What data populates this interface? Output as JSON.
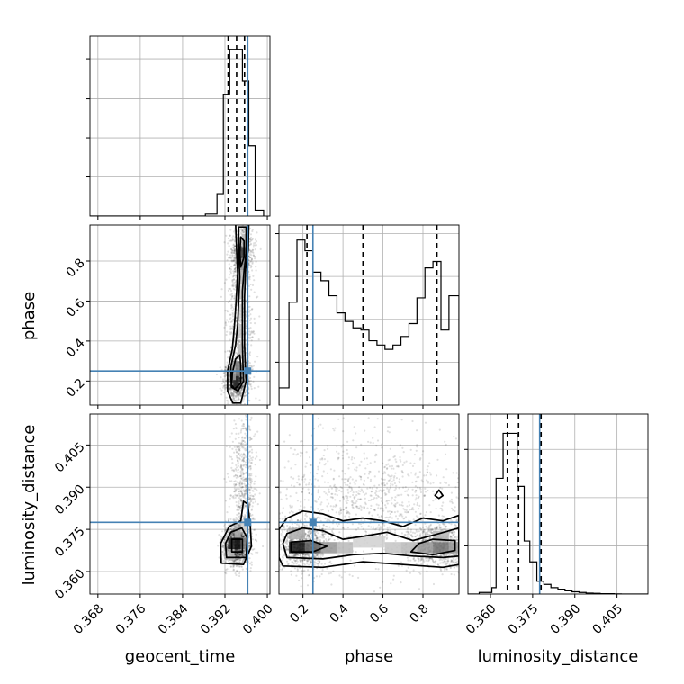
{
  "colors": {
    "truth": "#4682b4",
    "line": "#000000",
    "grid": "#b0b0b0",
    "scatter": "#000000"
  },
  "chart_data": {
    "type": "corner",
    "grid": true,
    "parameters": [
      "geocent_time",
      "phase",
      "luminosity_distance"
    ],
    "ranges": {
      "geocent_time": [
        0.3665,
        0.4005
      ],
      "phase": [
        0.08,
        0.98
      ],
      "luminosity_distance": [
        0.352,
        0.416
      ]
    },
    "truths": {
      "geocent_time": 0.3963,
      "phase": 0.25,
      "luminosity_distance": 0.3775
    },
    "quantiles": {
      "geocent_time": [
        0.3926,
        0.3942,
        0.3957
      ],
      "phase": [
        0.22,
        0.5,
        0.87
      ],
      "luminosity_distance": [
        0.366,
        0.37,
        0.378
      ]
    },
    "ticks": {
      "geocent_time": {
        "values": [
          0.368,
          0.376,
          0.384,
          0.392,
          0.4
        ],
        "labels": [
          "0.368",
          "0.376",
          "0.384",
          "0.392",
          "0.400"
        ]
      },
      "phase_y": {
        "values": [
          0.2,
          0.4,
          0.6,
          0.8
        ],
        "labels": [
          "0.2",
          "0.4",
          "0.6",
          "0.8"
        ]
      },
      "phase_x": {
        "values": [
          0.2,
          0.4,
          0.6,
          0.8
        ],
        "labels": [
          "0.2",
          "0.4",
          "0.6",
          "0.8"
        ]
      },
      "luminosity_distance_y": {
        "values": [
          0.36,
          0.375,
          0.39,
          0.405
        ],
        "labels": [
          "0.360",
          "0.375",
          "0.390",
          "0.405"
        ]
      },
      "luminosity_distance_x": {
        "values": [
          0.36,
          0.375,
          0.39,
          0.405
        ],
        "labels": [
          "0.360",
          "0.375",
          "0.390",
          "0.405"
        ]
      }
    },
    "hist_geocent_time": {
      "edges": [
        0.3665,
        0.3883,
        0.3905,
        0.3917,
        0.3929,
        0.3941,
        0.3953,
        0.3965,
        0.3977,
        0.3993
      ],
      "values": [
        0,
        0.5,
        5.5,
        31,
        42.5,
        42.5,
        34.5,
        18,
        1.5
      ]
    },
    "hist_phase": {
      "edges": [
        0.08,
        0.13,
        0.17,
        0.21,
        0.25,
        0.29,
        0.33,
        0.37,
        0.41,
        0.45,
        0.49,
        0.53,
        0.57,
        0.61,
        0.65,
        0.69,
        0.73,
        0.77,
        0.81,
        0.85,
        0.89,
        0.93,
        0.98
      ],
      "values": [
        4,
        24,
        38.5,
        36,
        31,
        29,
        25.5,
        21.5,
        19.5,
        18,
        17.5,
        15,
        14,
        13,
        14,
        16,
        19,
        25,
        32,
        33.5,
        17.5,
        25.5
      ]
    },
    "hist_luminosity_distance": {
      "edges": [
        0.352,
        0.356,
        0.3605,
        0.362,
        0.3645,
        0.367,
        0.3695,
        0.372,
        0.374,
        0.3765,
        0.379,
        0.3815,
        0.384,
        0.3865,
        0.389,
        0.3915,
        0.394,
        0.3965,
        0.399,
        0.4015,
        0.404,
        0.4065,
        0.409,
        0.416
      ],
      "values": [
        0,
        0.5,
        2,
        36,
        50,
        50,
        33.5,
        16.5,
        10,
        4,
        3,
        2,
        1.5,
        1,
        0.7,
        0.5,
        0.3,
        0.2,
        0.1,
        0.1,
        0.05,
        0,
        0
      ]
    },
    "samples_geocent_time_phase": {
      "n": 2200,
      "modes": [
        {
          "weight": 0.42,
          "x_mean": 0.3943,
          "x_sd": 0.0012,
          "y_mean": 0.21,
          "y_sd": 0.055
        },
        {
          "weight": 0.3,
          "x_mean": 0.3952,
          "x_sd": 0.0011,
          "y_mean": 0.83,
          "y_sd": 0.07
        },
        {
          "weight": 0.28,
          "x_mean": 0.3948,
          "x_sd": 0.0012,
          "y_mean": 0.5,
          "y_sd": 0.18
        }
      ]
    },
    "samples_geocent_time_luminosity_distance": {
      "n": 2000,
      "modes": [
        {
          "weight": 0.72,
          "x_mean": 0.3942,
          "x_sd": 0.0012,
          "y_mean": 0.3695,
          "y_sd": 0.0035
        },
        {
          "weight": 0.28,
          "x_mean": 0.3955,
          "x_sd": 0.0012,
          "y_mean": 0.392,
          "y_sd": 0.012
        }
      ]
    },
    "samples_phase_luminosity_distance": {
      "n": 2800,
      "modes": [
        {
          "weight": 0.32,
          "x_mean": 0.2,
          "x_sd": 0.06,
          "y_mean": 0.369,
          "y_sd": 0.004
        },
        {
          "weight": 0.3,
          "x_mean": 0.88,
          "x_sd": 0.08,
          "y_mean": 0.369,
          "y_sd": 0.004
        },
        {
          "weight": 0.38,
          "x_mean": 0.53,
          "x_sd": 0.25,
          "y_mean": 0.384,
          "y_sd": 0.012
        }
      ]
    },
    "density_geocent_time_phase": [
      {
        "x": 0.3941,
        "y": 0.2,
        "level": 0.95
      },
      {
        "x": 0.3945,
        "y": 0.26,
        "level": 0.55
      },
      {
        "x": 0.3953,
        "y": 0.84,
        "level": 0.85
      },
      {
        "x": 0.3953,
        "y": 0.78,
        "level": 0.45
      },
      {
        "x": 0.3949,
        "y": 0.35,
        "level": 0.3
      },
      {
        "x": 0.3949,
        "y": 0.45,
        "level": 0.22
      },
      {
        "x": 0.3949,
        "y": 0.55,
        "level": 0.18
      },
      {
        "x": 0.3951,
        "y": 0.65,
        "level": 0.2
      },
      {
        "x": 0.3951,
        "y": 0.72,
        "level": 0.3
      },
      {
        "x": 0.3957,
        "y": 0.9,
        "level": 0.3
      },
      {
        "x": 0.3935,
        "y": 0.24,
        "level": 0.4
      }
    ],
    "density_geocent_time_luminosity_distance": [
      {
        "x": 0.3932,
        "y": 0.37,
        "level": 0.9
      },
      {
        "x": 0.3944,
        "y": 0.37,
        "level": 1.0
      },
      {
        "x": 0.3956,
        "y": 0.37,
        "level": 0.55
      },
      {
        "x": 0.3944,
        "y": 0.374,
        "level": 0.35
      },
      {
        "x": 0.3932,
        "y": 0.366,
        "level": 0.3
      },
      {
        "x": 0.3956,
        "y": 0.376,
        "level": 0.2
      }
    ],
    "density_phase_luminosity_distance": [
      {
        "x": 0.17,
        "y": 0.3685,
        "level": 1.0
      },
      {
        "x": 0.25,
        "y": 0.3685,
        "level": 0.7
      },
      {
        "x": 0.33,
        "y": 0.3685,
        "level": 0.45
      },
      {
        "x": 0.41,
        "y": 0.3685,
        "level": 0.3
      },
      {
        "x": 0.49,
        "y": 0.3705,
        "level": 0.2
      },
      {
        "x": 0.57,
        "y": 0.3705,
        "level": 0.2
      },
      {
        "x": 0.65,
        "y": 0.3685,
        "level": 0.25
      },
      {
        "x": 0.73,
        "y": 0.3685,
        "level": 0.3
      },
      {
        "x": 0.81,
        "y": 0.3685,
        "level": 0.45
      },
      {
        "x": 0.89,
        "y": 0.3685,
        "level": 0.6
      },
      {
        "x": 0.97,
        "y": 0.3685,
        "level": 0.45
      },
      {
        "x": 0.17,
        "y": 0.3735,
        "level": 0.35
      },
      {
        "x": 0.89,
        "y": 0.3725,
        "level": 0.3
      }
    ],
    "contours_geocent_time_phase": [
      [
        [
          0.395,
          0.09
        ],
        [
          0.396,
          0.2
        ],
        [
          0.3958,
          0.3
        ],
        [
          0.3957,
          0.38
        ],
        [
          0.3957,
          0.5
        ],
        [
          0.3957,
          0.62
        ],
        [
          0.3959,
          0.76
        ],
        [
          0.3964,
          0.86
        ],
        [
          0.3965,
          0.99
        ],
        [
          0.394,
          0.99
        ],
        [
          0.3942,
          0.86
        ],
        [
          0.3944,
          0.74
        ],
        [
          0.3941,
          0.6
        ],
        [
          0.3938,
          0.48
        ],
        [
          0.3934,
          0.36
        ],
        [
          0.3925,
          0.25
        ],
        [
          0.3925,
          0.15
        ],
        [
          0.3935,
          0.09
        ]
      ],
      [
        [
          0.3945,
          0.15
        ],
        [
          0.3955,
          0.2
        ],
        [
          0.3954,
          0.28
        ],
        [
          0.3953,
          0.4
        ],
        [
          0.3953,
          0.55
        ],
        [
          0.3953,
          0.65
        ],
        [
          0.3956,
          0.75
        ],
        [
          0.396,
          0.84
        ],
        [
          0.396,
          0.97
        ],
        [
          0.3946,
          0.97
        ],
        [
          0.3946,
          0.84
        ],
        [
          0.3948,
          0.72
        ],
        [
          0.3946,
          0.6
        ],
        [
          0.3944,
          0.48
        ],
        [
          0.394,
          0.38
        ],
        [
          0.3931,
          0.27
        ],
        [
          0.3932,
          0.17
        ]
      ],
      [
        [
          0.3938,
          0.16
        ],
        [
          0.395,
          0.19
        ],
        [
          0.395,
          0.28
        ],
        [
          0.3948,
          0.33
        ],
        [
          0.394,
          0.31
        ],
        [
          0.3934,
          0.24
        ],
        [
          0.3933,
          0.18
        ]
      ],
      [
        [
          0.395,
          0.77
        ],
        [
          0.3956,
          0.82
        ],
        [
          0.3956,
          0.9
        ],
        [
          0.395,
          0.92
        ],
        [
          0.3948,
          0.84
        ]
      ]
    ],
    "contours_geocent_time_luminosity_distance": [
      [
        [
          0.3913,
          0.363
        ],
        [
          0.3955,
          0.3625
        ],
        [
          0.397,
          0.369
        ],
        [
          0.3968,
          0.376
        ],
        [
          0.3963,
          0.384
        ],
        [
          0.3955,
          0.385
        ],
        [
          0.395,
          0.378
        ],
        [
          0.3928,
          0.376
        ],
        [
          0.3912,
          0.37
        ]
      ],
      [
        [
          0.3923,
          0.365
        ],
        [
          0.396,
          0.365
        ],
        [
          0.3962,
          0.372
        ],
        [
          0.3952,
          0.3755
        ],
        [
          0.3931,
          0.374
        ],
        [
          0.3921,
          0.37
        ]
      ],
      [
        [
          0.3933,
          0.367
        ],
        [
          0.3953,
          0.367
        ],
        [
          0.3953,
          0.3715
        ],
        [
          0.3933,
          0.3715
        ]
      ]
    ],
    "contours_phase_luminosity_distance": [
      [
        [
          0.1,
          0.362
        ],
        [
          0.3,
          0.3615
        ],
        [
          0.5,
          0.3635
        ],
        [
          0.7,
          0.3625
        ],
        [
          0.9,
          0.3615
        ],
        [
          0.98,
          0.3625
        ],
        [
          0.98,
          0.38
        ],
        [
          0.9,
          0.378
        ],
        [
          0.8,
          0.379
        ],
        [
          0.7,
          0.376
        ],
        [
          0.6,
          0.378
        ],
        [
          0.5,
          0.379
        ],
        [
          0.4,
          0.378
        ],
        [
          0.3,
          0.3805
        ],
        [
          0.2,
          0.3815
        ],
        [
          0.12,
          0.379
        ],
        [
          0.08,
          0.375
        ],
        [
          0.08,
          0.365
        ]
      ],
      [
        [
          0.12,
          0.365
        ],
        [
          0.3,
          0.3645
        ],
        [
          0.45,
          0.366
        ],
        [
          0.6,
          0.3665
        ],
        [
          0.75,
          0.3655
        ],
        [
          0.9,
          0.365
        ],
        [
          0.98,
          0.3655
        ],
        [
          0.98,
          0.3755
        ],
        [
          0.88,
          0.3735
        ],
        [
          0.75,
          0.371
        ],
        [
          0.62,
          0.374
        ],
        [
          0.5,
          0.3725
        ],
        [
          0.4,
          0.3715
        ],
        [
          0.3,
          0.3745
        ],
        [
          0.2,
          0.3755
        ],
        [
          0.12,
          0.3735
        ],
        [
          0.1,
          0.37
        ]
      ],
      [
        [
          0.14,
          0.367
        ],
        [
          0.25,
          0.367
        ],
        [
          0.32,
          0.369
        ],
        [
          0.24,
          0.371
        ],
        [
          0.14,
          0.3705
        ]
      ],
      [
        [
          0.74,
          0.367
        ],
        [
          0.85,
          0.366
        ],
        [
          0.96,
          0.3675
        ],
        [
          0.96,
          0.371
        ],
        [
          0.85,
          0.3715
        ],
        [
          0.78,
          0.37
        ]
      ],
      [
        [
          0.86,
          0.387
        ],
        [
          0.88,
          0.389
        ],
        [
          0.9,
          0.387
        ],
        [
          0.88,
          0.386
        ]
      ]
    ],
    "xlabel_bottom_left": "geocent_time",
    "xlabel_bottom_middle": "phase",
    "xlabel_bottom_right": "luminosity_distance",
    "ylabel_middle": "phase",
    "ylabel_bottom": "luminosity_distance"
  }
}
